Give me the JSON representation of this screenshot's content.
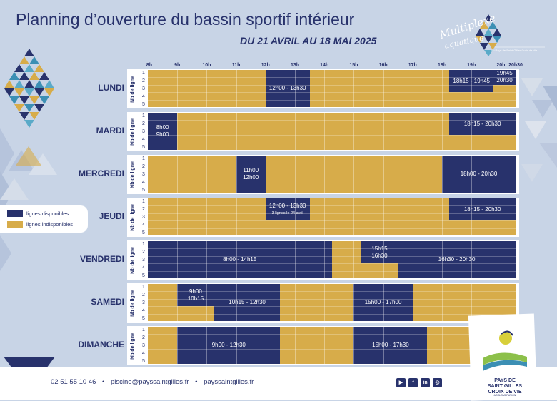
{
  "title": "Planning d’ouverture du bassin sportif intérieur",
  "subtitle": "DU 21 AVRIL AU 18 MAI 2025",
  "logo": {
    "line1": "Multiplexe",
    "line2": "aquatique",
    "tagline": "du Pays de Saint Gilles Croix de Vie"
  },
  "hours": [
    "8h",
    "9h",
    "10h",
    "11h",
    "12h",
    "13h",
    "14h",
    "15h",
    "16h",
    "17h",
    "18h",
    "19h",
    "20h",
    "20h30"
  ],
  "line_axis_label": "Nb de ligne",
  "line_numbers": [
    "1",
    "2",
    "3",
    "4",
    "5"
  ],
  "legend": {
    "available": "lignes disponibles",
    "unavailable": "lignes indisponibles"
  },
  "colors": {
    "available": "#28326c",
    "unavailable": "#d7ac4a",
    "background": "#c8d4e6"
  },
  "schedule": [
    {
      "day": "LUNDI",
      "blocks": [
        {
          "start": 12.0,
          "end": 13.5,
          "lines": [
            1,
            5
          ],
          "label": "12h00 - 13h30"
        },
        {
          "start": 18.25,
          "end": 19.75,
          "lines": [
            1,
            3
          ],
          "label": "18h15 - 19h45"
        },
        {
          "start": 19.75,
          "end": 20.5,
          "lines": [
            1,
            2
          ],
          "label": "19h45\n20h30"
        }
      ]
    },
    {
      "day": "MARDI",
      "blocks": [
        {
          "start": 8.0,
          "end": 9.0,
          "lines": [
            1,
            5
          ],
          "label": "8h00\n9h00"
        },
        {
          "start": 18.25,
          "end": 20.5,
          "lines": [
            1,
            3
          ],
          "label": "18h15 - 20h30"
        }
      ]
    },
    {
      "day": "MERCREDI",
      "blocks": [
        {
          "start": 11.0,
          "end": 12.0,
          "lines": [
            1,
            5
          ],
          "label": "11h00\n12h00"
        },
        {
          "start": 18.0,
          "end": 20.5,
          "lines": [
            1,
            5
          ],
          "label": "18h00 - 20h30"
        }
      ]
    },
    {
      "day": "JEUDI",
      "blocks": [
        {
          "start": 12.0,
          "end": 13.5,
          "lines": [
            1,
            3
          ],
          "label": "12h00 - 13h30",
          "note": "3 lignes le 24 avril"
        },
        {
          "start": 18.25,
          "end": 20.5,
          "lines": [
            1,
            3
          ],
          "label": "18h15 - 20h30"
        }
      ]
    },
    {
      "day": "VENDREDI",
      "blocks": [
        {
          "start": 8.0,
          "end": 14.25,
          "lines": [
            1,
            5
          ],
          "label": "8h00 - 14h15"
        },
        {
          "start": 15.25,
          "end": 16.5,
          "lines": [
            1,
            3
          ],
          "label": "15h15\n16h30"
        },
        {
          "start": 16.5,
          "end": 20.5,
          "lines": [
            1,
            5
          ],
          "label": "16h30 - 20h30"
        }
      ]
    },
    {
      "day": "SAMEDI",
      "blocks": [
        {
          "start": 9.0,
          "end": 10.25,
          "lines": [
            1,
            3
          ],
          "label": "9h00\n10h15"
        },
        {
          "start": 10.25,
          "end": 12.5,
          "lines": [
            1,
            5
          ],
          "label": "10h15 - 12h30"
        },
        {
          "start": 15.0,
          "end": 17.0,
          "lines": [
            1,
            5
          ],
          "label": "15h00 - 17h00"
        }
      ]
    },
    {
      "day": "DIMANCHE",
      "blocks": [
        {
          "start": 9.0,
          "end": 12.5,
          "lines": [
            1,
            5
          ],
          "label": "9h00 - 12h30"
        },
        {
          "start": 15.0,
          "end": 17.5,
          "lines": [
            1,
            5
          ],
          "label": "15h00 - 17h30"
        }
      ]
    }
  ],
  "footer": {
    "phone": "02 51 55 10 46",
    "email": "piscine@payssaintgilles.fr",
    "website": "payssaintgilles.fr",
    "social": [
      "youtube-icon",
      "facebook-icon",
      "linkedin-icon",
      "instagram-icon"
    ]
  },
  "pays_logo": {
    "line1": "PAYS DE",
    "line2": "SAINT GILLES",
    "line3": "CROIX DE VIE",
    "line4": "AGGLOMÉRATION"
  }
}
